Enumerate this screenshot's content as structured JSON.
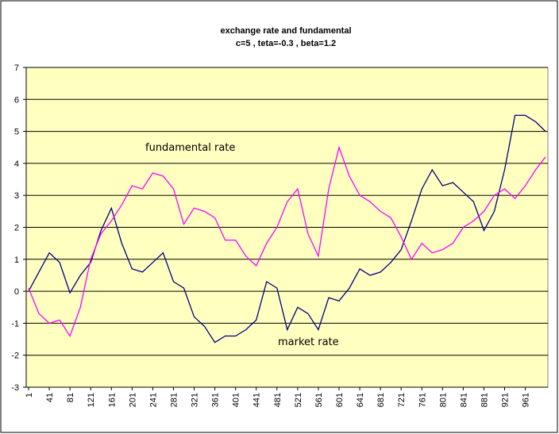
{
  "chart_data": {
    "type": "line",
    "title": "exchange rate and fundamental",
    "subtitle": "c=5 , teta=-0.3 , beta=1.2",
    "x": [
      1,
      21,
      41,
      61,
      81,
      101,
      121,
      141,
      161,
      181,
      201,
      221,
      241,
      261,
      281,
      301,
      321,
      341,
      361,
      381,
      401,
      421,
      441,
      461,
      481,
      501,
      521,
      541,
      561,
      581,
      601,
      621,
      641,
      661,
      681,
      701,
      721,
      741,
      761,
      781,
      801,
      821,
      841,
      861,
      881,
      901,
      921,
      941,
      961,
      981,
      1000
    ],
    "series": [
      {
        "name": "market rate",
        "color": "#000080",
        "values": [
          0,
          0.6,
          1.2,
          0.9,
          -0.05,
          0.5,
          0.9,
          1.9,
          2.6,
          1.5,
          0.7,
          0.6,
          0.9,
          1.2,
          0.3,
          0.1,
          -0.8,
          -1.1,
          -1.6,
          -1.4,
          -1.4,
          -1.2,
          -0.9,
          0.3,
          0.1,
          -1.2,
          -0.5,
          -0.7,
          -1.2,
          -0.2,
          -0.3,
          0.1,
          0.7,
          0.5,
          0.6,
          0.9,
          1.3,
          2.2,
          3.2,
          3.8,
          3.3,
          3.4,
          3.1,
          2.8,
          1.9,
          2.5,
          3.8,
          5.5,
          5.5,
          5.3,
          5.0
        ]
      },
      {
        "name": "fundamental rate",
        "color": "#ff00ff",
        "values": [
          0.1,
          -0.7,
          -1.0,
          -0.9,
          -1.4,
          -0.5,
          1.0,
          1.8,
          2.2,
          2.7,
          3.3,
          3.2,
          3.7,
          3.6,
          3.2,
          2.1,
          2.6,
          2.5,
          2.3,
          1.6,
          1.6,
          1.1,
          0.8,
          1.5,
          2.0,
          2.8,
          3.2,
          1.8,
          1.1,
          3.2,
          4.5,
          3.6,
          3.0,
          2.8,
          2.5,
          2.3,
          1.7,
          1.0,
          1.5,
          1.2,
          1.3,
          1.5,
          2.0,
          2.2,
          2.5,
          3.0,
          3.2,
          2.9,
          3.3,
          3.8,
          4.2
        ]
      }
    ],
    "xlim": [
      1,
      1000
    ],
    "xticks": [
      1,
      41,
      81,
      121,
      161,
      201,
      241,
      281,
      321,
      361,
      401,
      441,
      481,
      521,
      561,
      601,
      641,
      681,
      721,
      761,
      801,
      841,
      881,
      921,
      961
    ],
    "ylim": [
      -3,
      7
    ],
    "yticks": [
      -3,
      -2,
      -1,
      0,
      1,
      2,
      3,
      4,
      5,
      6,
      7
    ],
    "grid": true,
    "plot_background": "#ffffc0"
  }
}
